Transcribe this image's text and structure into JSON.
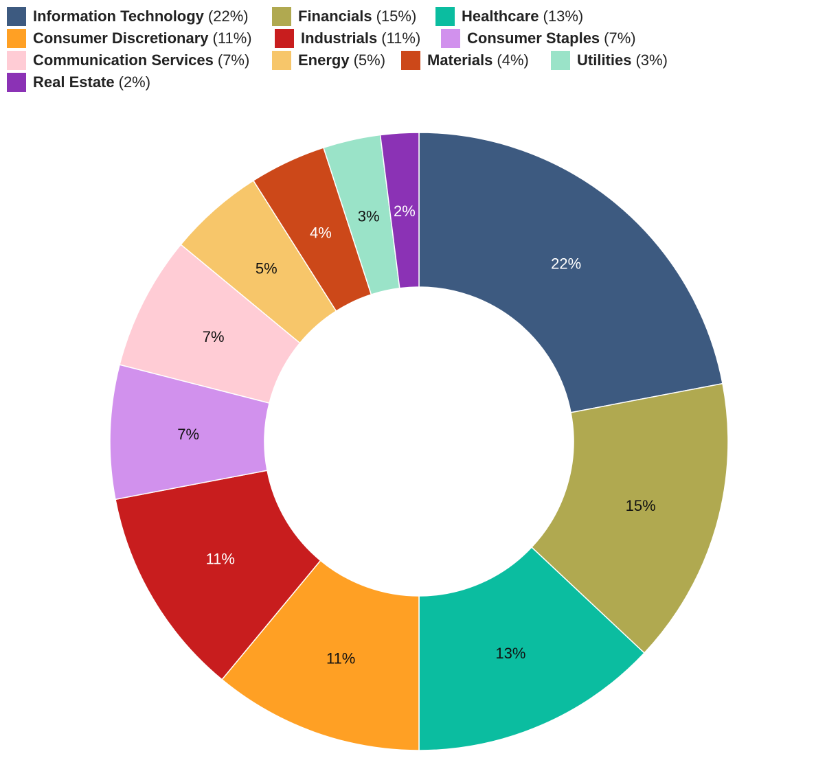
{
  "chart_data": {
    "type": "pie",
    "donut": true,
    "title": "",
    "legend_position": "top-left",
    "slices": [
      {
        "name": "Information Technology",
        "value": 22,
        "label": "22%",
        "legend_pct": "(22%)",
        "color": "#3d5a80",
        "label_color": "#ffffff"
      },
      {
        "name": "Financials",
        "value": 15,
        "label": "15%",
        "legend_pct": "(15%)",
        "color": "#b0a950",
        "label_color": "#111111"
      },
      {
        "name": "Healthcare",
        "value": 13,
        "label": "13%",
        "legend_pct": "(13%)",
        "color": "#0bbda0",
        "label_color": "#111111"
      },
      {
        "name": "Consumer Discretionary",
        "value": 11,
        "label": "11%",
        "legend_pct": "(11%)",
        "color": "#ffa024",
        "label_color": "#111111"
      },
      {
        "name": "Industrials",
        "value": 11,
        "label": "11%",
        "legend_pct": "(11%)",
        "color": "#c81d1e",
        "label_color": "#ffffff"
      },
      {
        "name": "Consumer Staples",
        "value": 7,
        "label": "7%",
        "legend_pct": "(7%)",
        "color": "#d191ed",
        "label_color": "#111111"
      },
      {
        "name": "Communication Services",
        "value": 7,
        "label": "7%",
        "legend_pct": "(7%)",
        "color": "#ffccd5",
        "label_color": "#111111"
      },
      {
        "name": "Energy",
        "value": 5,
        "label": "5%",
        "legend_pct": "(5%)",
        "color": "#f7c66a",
        "label_color": "#111111"
      },
      {
        "name": "Materials",
        "value": 4,
        "label": "4%",
        "legend_pct": "(4%)",
        "color": "#cc4819",
        "label_color": "#ffffff"
      },
      {
        "name": "Utilities",
        "value": 3,
        "label": "3%",
        "legend_pct": "(3%)",
        "color": "#9ae3c8",
        "label_color": "#111111"
      },
      {
        "name": "Real Estate",
        "value": 2,
        "label": "2%",
        "legend_pct": "(2%)",
        "color": "#8b32b5",
        "label_color": "#ffffff"
      }
    ]
  }
}
